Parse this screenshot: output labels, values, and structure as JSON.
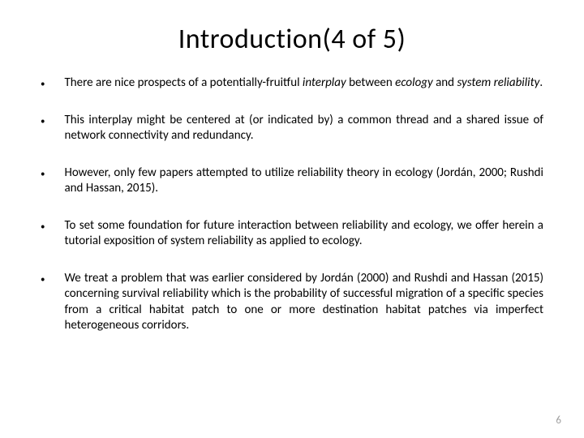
{
  "title": "Introduction(4 of 5)",
  "bullets": [
    {
      "segments": [
        {
          "text": "There are nice prospects of a potentially-fruitful ",
          "italic": false
        },
        {
          "text": "interplay",
          "italic": true
        },
        {
          "text": " between ",
          "italic": false
        },
        {
          "text": "ecology",
          "italic": true
        },
        {
          "text": " and ",
          "italic": false
        },
        {
          "text": "system reliability",
          "italic": true
        },
        {
          "text": ".",
          "italic": false
        }
      ]
    },
    {
      "segments": [
        {
          "text": "This interplay might be centered at (or indicated by) a common thread and a shared issue of network connectivity and redundancy.",
          "italic": false
        }
      ]
    },
    {
      "segments": [
        {
          "text": "However, only few papers attempted to utilize reliability theory in ecology (Jordán, 2000; Rushdi and Hassan, 2015).",
          "italic": false
        }
      ]
    },
    {
      "segments": [
        {
          "text": "To set some foundation for future interaction between reliability and ecology, we offer herein a tutorial exposition of system reliability as applied to ecology.",
          "italic": false
        }
      ]
    },
    {
      "segments": [
        {
          "text": "We treat a problem that was earlier considered by Jordán (2000) and Rushdi and Hassan (2015) concerning survival reliability which is the probability of successful migration of a specific species from a critical habitat patch to one or more destination habitat patches via imperfect heterogeneous corridors.",
          "italic": false
        }
      ]
    }
  ],
  "page_number": "6",
  "colors": {
    "background": "#ffffff",
    "text": "#000000",
    "page_number": "#a0a0a0"
  },
  "typography": {
    "title_fontsize": 34,
    "body_fontsize": 15,
    "pagenum_fontsize": 13,
    "font_family": "Calibri"
  }
}
